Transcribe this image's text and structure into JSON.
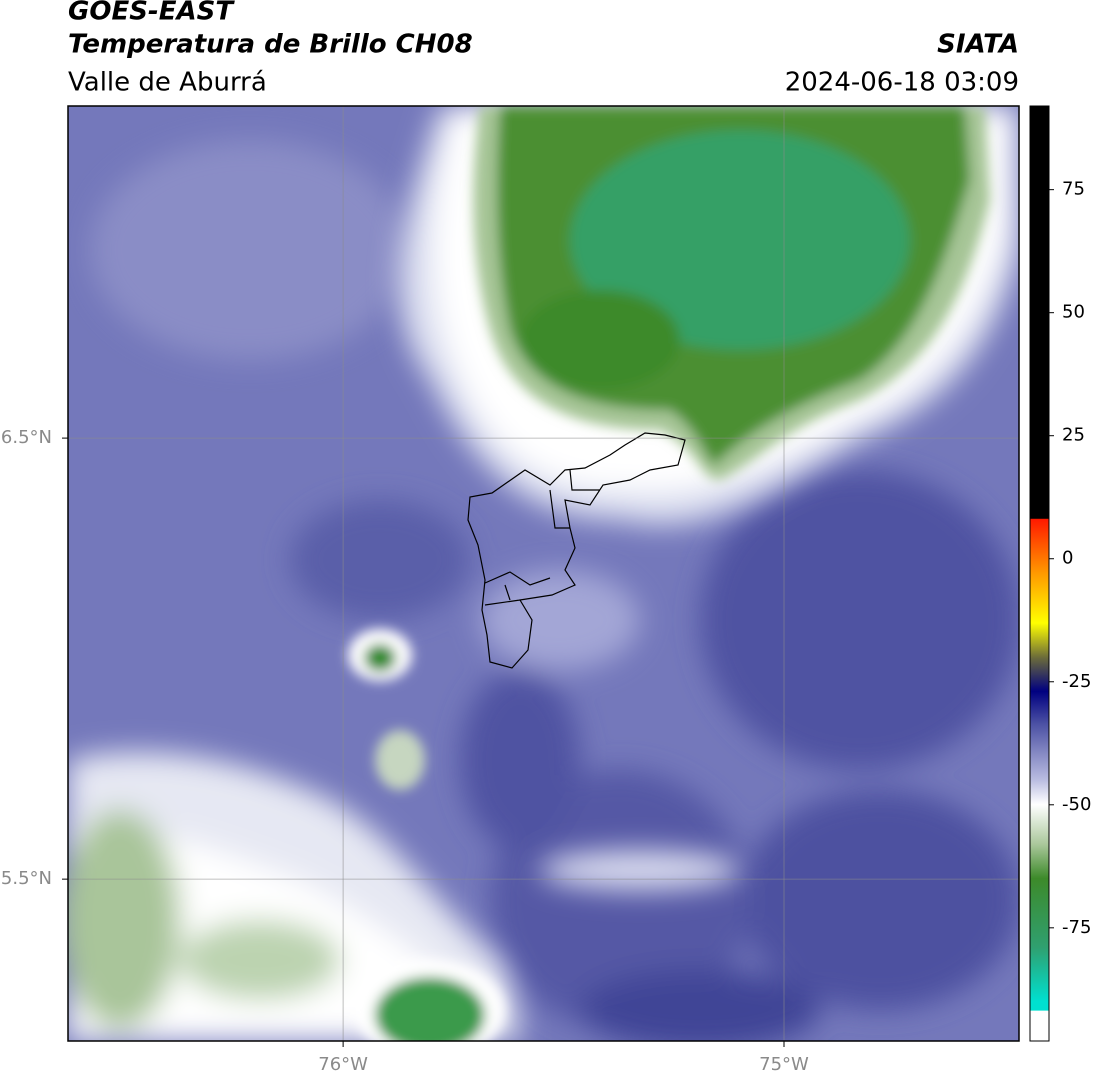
{
  "map": {
    "title": "GOES-EAST",
    "subtitle": "Temperatura de Brillo CH08",
    "source": "SIATA",
    "region": "Valle de Aburrá",
    "datetime": "2024-06-18 03:09",
    "xlim": [
      -76.624,
      -74.467
    ],
    "ylim": [
      5.133,
      7.253
    ],
    "xticks": [
      {
        "value": -76,
        "label": "76°W"
      },
      {
        "value": -75,
        "label": "75°W"
      }
    ],
    "yticks": [
      {
        "value": 5.5,
        "label": "5.5°N"
      },
      {
        "value": 6.5,
        "label": "6.5°N"
      }
    ],
    "grid": true,
    "colorbar": {
      "lim": [
        -98,
        92
      ],
      "ticks": [
        75,
        50,
        25,
        0,
        -25,
        -50,
        -75
      ]
    }
  }
}
